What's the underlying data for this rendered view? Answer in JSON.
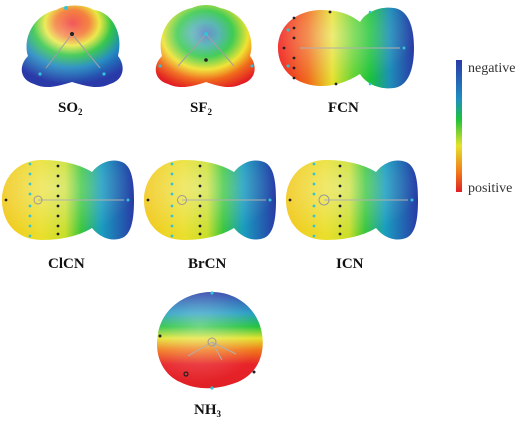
{
  "colors": {
    "negative": "#2b3aa8",
    "green": "#17c431",
    "yellow": "#e8e226",
    "orange": "#f08a1a",
    "positive": "#e8202a",
    "cpoint_cyan": "#35c3d4",
    "cpoint_dark": "#222222",
    "atom_gray": "#8a8a8a",
    "background": "#ffffff"
  },
  "colorbar": {
    "top_label": "negative",
    "bottom_label": "positive",
    "orientation": "vertical",
    "gradient_top_to_bottom": [
      "negative",
      "green",
      "yellow",
      "positive"
    ]
  },
  "molecules": [
    {
      "id": "so2",
      "label": "SO",
      "subscript": "2",
      "label_suffix": "",
      "shape": "bent-triple-lobe",
      "positive_region": "top-center"
    },
    {
      "id": "sf2",
      "label": "SF",
      "subscript": "2",
      "label_suffix": "",
      "shape": "bent-triple-lobe",
      "positive_region": "top-center"
    },
    {
      "id": "fcn",
      "label": "FCN",
      "subscript": "",
      "label_suffix": "",
      "shape": "linear-double-lobe",
      "positive_region": "left"
    },
    {
      "id": "clcn",
      "label": "ClCN",
      "subscript": "",
      "label_suffix": "",
      "shape": "linear-double-lobe",
      "positive_region": "left"
    },
    {
      "id": "brcn",
      "label": "BrCN",
      "subscript": "",
      "label_suffix": "",
      "shape": "linear-double-lobe",
      "positive_region": "left"
    },
    {
      "id": "icn",
      "label": "ICN",
      "subscript": "",
      "label_suffix": "",
      "shape": "linear-double-lobe",
      "positive_region": "left"
    },
    {
      "id": "nh3",
      "label": "NH",
      "subscript": "3",
      "label_suffix": "",
      "shape": "rounded-blob",
      "positive_region": "bottom"
    }
  ]
}
